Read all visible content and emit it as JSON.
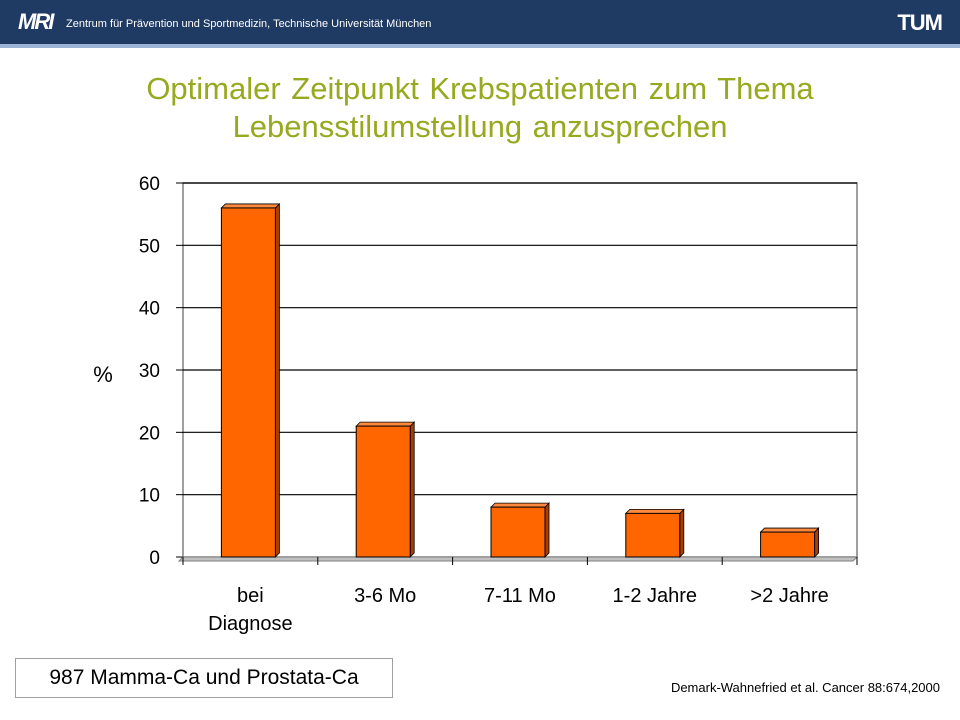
{
  "header": {
    "logo_left": "MRI",
    "institute": "Zentrum für Prävention und Sportmedizin, Technische Universität München",
    "logo_right": "TUM"
  },
  "slide": {
    "title_line1": "Optimaler Zeitpunkt Krebspatienten zum Thema",
    "title_line2": "Lebensstilumstellung anzusprechen",
    "note": "987 Mamma-Ca und Prostata-Ca",
    "citation": "Demark-Wahnefried et al. Cancer 88:674,2000"
  },
  "colors": {
    "header_bg": "#1f3a63",
    "title": "#97a91f",
    "bar_fill": "#ff6600",
    "bar_side": "#a83e00"
  },
  "chart_data": {
    "type": "bar",
    "categories": [
      [
        "bei",
        "Diagnose"
      ],
      [
        "3-6 Mo"
      ],
      [
        "7-11 Mo"
      ],
      [
        "1-2 Jahre"
      ],
      [
        ">2 Jahre"
      ]
    ],
    "values": [
      56,
      21,
      8,
      7,
      4
    ],
    "title": "",
    "xlabel": "",
    "ylabel": "%",
    "ylim": [
      0,
      60
    ],
    "yticks": [
      0,
      10,
      20,
      30,
      40,
      50,
      60
    ],
    "grid": true
  }
}
